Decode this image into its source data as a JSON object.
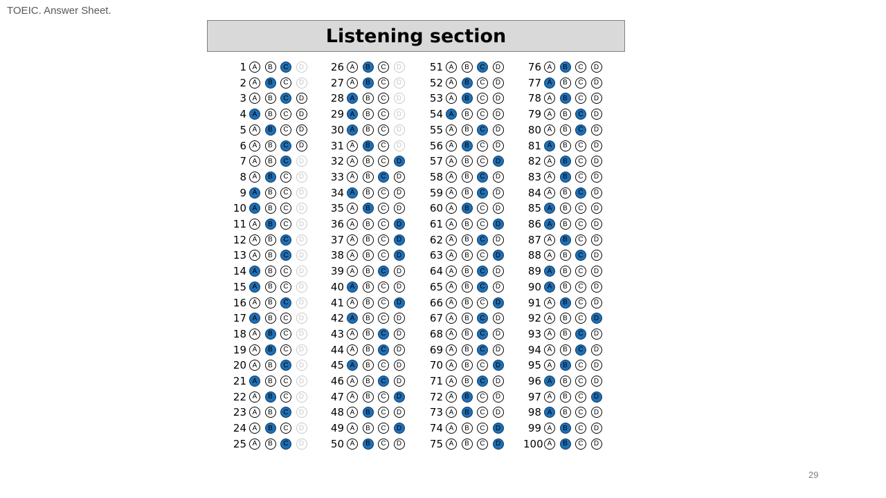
{
  "slide": {
    "corner_title": "TOEIC. Answer Sheet.",
    "section_title": "Listening section",
    "page_number": "29"
  },
  "colors": {
    "filled_bubble": "#1f6fb4",
    "header_background": "#d9d9d9",
    "faded_bubble": "#c8c8c8"
  },
  "option_letters": [
    "A",
    "B",
    "C",
    "D"
  ],
  "answers": [
    "C",
    "B",
    "C",
    "A",
    "B",
    "C",
    "C",
    "B",
    "A",
    "A",
    "B",
    "C",
    "C",
    "A",
    "A",
    "C",
    "A",
    "B",
    "B",
    "C",
    "A",
    "B",
    "C",
    "B",
    "C",
    "B",
    "B",
    "A",
    "A",
    "A",
    "B",
    "D",
    "C",
    "A",
    "B",
    "D",
    "D",
    "D",
    "C",
    "A",
    "D",
    "A",
    "C",
    "C",
    "A",
    "C",
    "D",
    "B",
    "D",
    "B",
    "C",
    "B",
    "B",
    "A",
    "C",
    "B",
    "D",
    "C",
    "C",
    "B",
    "D",
    "C",
    "D",
    "C",
    "C",
    "D",
    "C",
    "C",
    "C",
    "D",
    "C",
    "B",
    "B",
    "D",
    "D",
    "B",
    "A",
    "B",
    "C",
    "C",
    "A",
    "B",
    "B",
    "C",
    "A",
    "A",
    "B",
    "C",
    "A",
    "A",
    "B",
    "D",
    "C",
    "C",
    "B",
    "A",
    "D",
    "A",
    "B",
    "B"
  ],
  "faded_d_questions": [
    1,
    2,
    7,
    8,
    9,
    10,
    11,
    12,
    13,
    14,
    15,
    16,
    17,
    18,
    19,
    20,
    21,
    22,
    23,
    24,
    25,
    26,
    27,
    28,
    29,
    30,
    31
  ]
}
